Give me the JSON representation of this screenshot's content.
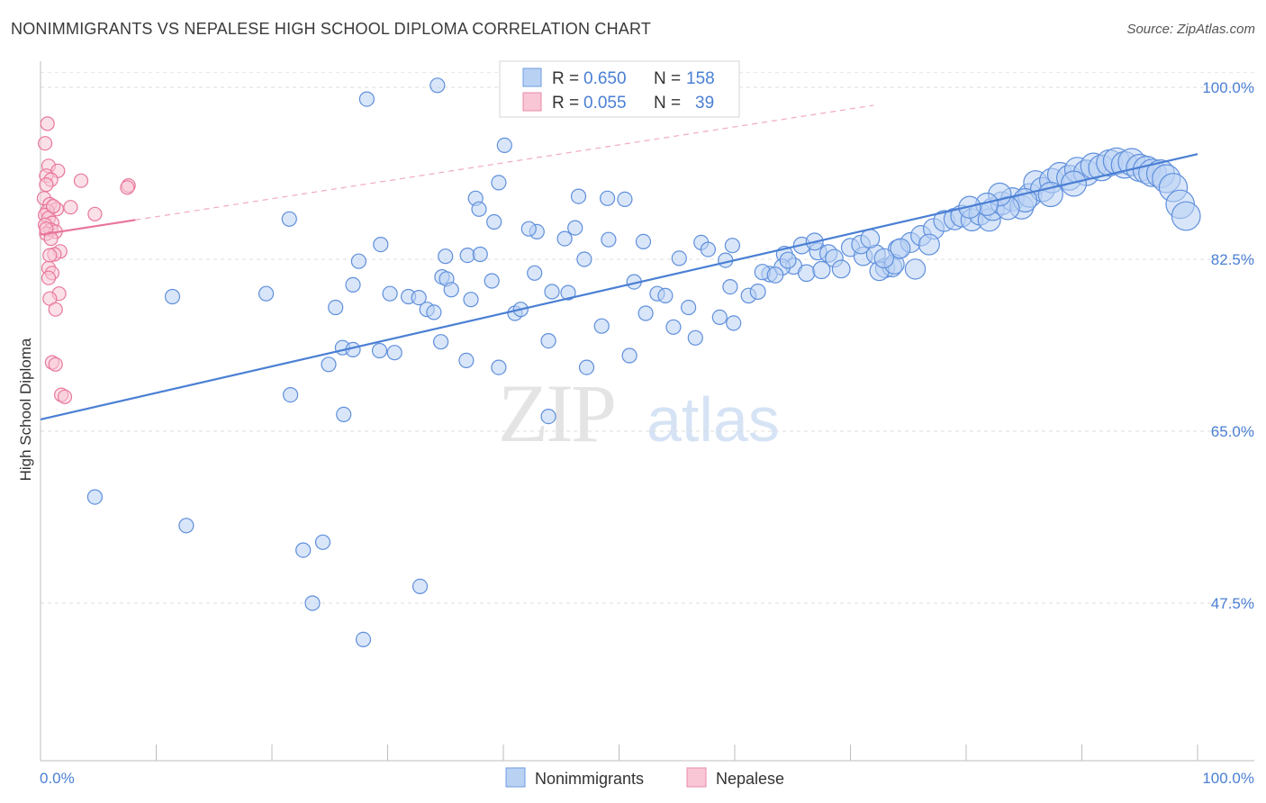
{
  "title": "NONIMMIGRANTS VS NEPALESE HIGH SCHOOL DIPLOMA CORRELATION CHART",
  "source": "Source: ZipAtlas.com",
  "chart_data": {
    "type": "scatter",
    "ylabel": "High School Diploma",
    "x_tick_labels": [
      "0.0%",
      "100.0%"
    ],
    "y_tick_labels": [
      "100.0%",
      "82.5%",
      "65.0%",
      "47.5%"
    ],
    "y_ticks": [
      100.0,
      82.5,
      65.0,
      47.5
    ],
    "xlim": [
      0,
      100
    ],
    "ylim": [
      34,
      102
    ],
    "grid": true,
    "legend_position": "top-center",
    "watermark": "ZIPatlas",
    "colors": {
      "nonimmigrants": "#4a7fd4",
      "nepalese": "#e8769a"
    },
    "stats": [
      {
        "r_label": "R = ",
        "r": "0.650",
        "n_label": "N = ",
        "n": "158"
      },
      {
        "r_label": "R = ",
        "r": "0.055",
        "n_label": "N = ",
        "n": "39"
      }
    ],
    "series": [
      {
        "name": "Nonimmigrants",
        "trend": {
          "x": [
            0,
            100
          ],
          "y": [
            66.2,
            93.2
          ]
        },
        "points": [
          [
            34.3,
            100.2
          ],
          [
            28.2,
            98.8
          ],
          [
            40.1,
            94.1
          ],
          [
            39.6,
            90.3
          ],
          [
            37.6,
            88.7
          ],
          [
            37.9,
            87.6
          ],
          [
            46.5,
            88.9
          ],
          [
            49.0,
            88.7
          ],
          [
            50.5,
            88.6
          ],
          [
            21.5,
            86.6
          ],
          [
            39.2,
            86.3
          ],
          [
            42.9,
            85.3
          ],
          [
            42.2,
            85.6
          ],
          [
            45.3,
            84.6
          ],
          [
            46.2,
            85.7
          ],
          [
            49.1,
            84.5
          ],
          [
            52.1,
            84.3
          ],
          [
            57.1,
            84.2
          ],
          [
            59.8,
            83.9
          ],
          [
            29.4,
            84.0
          ],
          [
            35.0,
            82.8
          ],
          [
            36.9,
            82.9
          ],
          [
            38.0,
            83.0
          ],
          [
            47.0,
            82.5
          ],
          [
            27.5,
            82.3
          ],
          [
            42.7,
            81.1
          ],
          [
            55.2,
            82.6
          ],
          [
            57.7,
            83.5
          ],
          [
            59.2,
            82.4
          ],
          [
            34.7,
            80.7
          ],
          [
            35.1,
            80.5
          ],
          [
            39.0,
            80.3
          ],
          [
            35.5,
            79.4
          ],
          [
            45.6,
            79.1
          ],
          [
            51.3,
            80.2
          ],
          [
            37.2,
            78.4
          ],
          [
            44.2,
            79.2
          ],
          [
            53.3,
            79.0
          ],
          [
            54.0,
            78.8
          ],
          [
            61.2,
            78.8
          ],
          [
            59.6,
            79.7
          ],
          [
            62.0,
            79.2
          ],
          [
            63.0,
            81.0
          ],
          [
            27.0,
            79.9
          ],
          [
            30.2,
            79.0
          ],
          [
            31.8,
            78.7
          ],
          [
            32.7,
            78.6
          ],
          [
            11.4,
            78.7
          ],
          [
            19.5,
            79.0
          ],
          [
            25.5,
            77.6
          ],
          [
            33.4,
            77.4
          ],
          [
            34.0,
            77.1
          ],
          [
            41.0,
            77.0
          ],
          [
            41.5,
            77.4
          ],
          [
            52.3,
            77.0
          ],
          [
            56.0,
            77.6
          ],
          [
            58.7,
            76.6
          ],
          [
            59.9,
            76.0
          ],
          [
            54.7,
            75.6
          ],
          [
            56.6,
            74.5
          ],
          [
            43.9,
            74.2
          ],
          [
            48.5,
            75.7
          ],
          [
            34.6,
            74.1
          ],
          [
            26.1,
            73.5
          ],
          [
            27.0,
            73.3
          ],
          [
            29.3,
            73.2
          ],
          [
            30.6,
            73.0
          ],
          [
            36.8,
            72.2
          ],
          [
            50.9,
            72.7
          ],
          [
            24.9,
            71.8
          ],
          [
            39.6,
            71.5
          ],
          [
            47.2,
            71.5
          ],
          [
            21.6,
            68.7
          ],
          [
            26.2,
            66.7
          ],
          [
            43.9,
            66.5
          ],
          [
            4.7,
            58.3
          ],
          [
            12.6,
            55.4
          ],
          [
            22.7,
            52.9
          ],
          [
            24.4,
            53.7
          ],
          [
            32.8,
            49.2
          ],
          [
            23.5,
            47.5
          ],
          [
            27.9,
            43.8
          ],
          [
            64.3,
            83.0
          ],
          [
            65.1,
            81.8
          ],
          [
            66.2,
            81.1
          ],
          [
            67.2,
            83.3
          ],
          [
            68.1,
            83.1
          ],
          [
            68.6,
            82.6
          ],
          [
            70.0,
            83.7
          ],
          [
            71.1,
            82.8
          ],
          [
            72.2,
            83.0
          ],
          [
            73.0,
            81.6
          ],
          [
            73.6,
            81.7
          ],
          [
            74.1,
            83.5
          ],
          [
            75.6,
            81.5
          ],
          [
            70.9,
            84.0
          ],
          [
            71.7,
            84.6
          ],
          [
            64.1,
            81.7
          ],
          [
            62.4,
            81.2
          ],
          [
            63.5,
            80.9
          ],
          [
            64.6,
            82.4
          ],
          [
            65.8,
            83.9
          ],
          [
            66.9,
            84.3
          ],
          [
            72.5,
            81.3
          ],
          [
            73.8,
            82.0
          ],
          [
            75.2,
            84.2
          ],
          [
            76.1,
            84.9
          ],
          [
            77.2,
            85.6
          ],
          [
            78.1,
            86.4
          ],
          [
            79.0,
            86.6
          ],
          [
            79.6,
            86.9
          ],
          [
            80.5,
            86.5
          ],
          [
            81.2,
            87.1
          ],
          [
            82.0,
            86.5
          ],
          [
            82.3,
            87.6
          ],
          [
            83.1,
            88.2
          ],
          [
            84.0,
            88.6
          ],
          [
            84.8,
            87.8
          ],
          [
            85.5,
            89.0
          ],
          [
            86.0,
            90.3
          ],
          [
            86.6,
            89.6
          ],
          [
            87.4,
            90.5
          ],
          [
            88.1,
            91.1
          ],
          [
            88.9,
            90.8
          ],
          [
            89.6,
            91.6
          ],
          [
            90.4,
            91.3
          ],
          [
            91.0,
            92.0
          ],
          [
            91.7,
            91.8
          ],
          [
            92.4,
            92.3
          ],
          [
            93.0,
            92.5
          ],
          [
            93.7,
            92.1
          ],
          [
            94.3,
            92.4
          ],
          [
            95.0,
            91.8
          ],
          [
            95.6,
            91.6
          ],
          [
            96.1,
            91.3
          ],
          [
            96.8,
            91.2
          ],
          [
            97.3,
            90.7
          ],
          [
            97.9,
            89.8
          ],
          [
            98.5,
            88.1
          ],
          [
            99.0,
            86.9
          ],
          [
            89.3,
            90.2
          ],
          [
            87.3,
            89.1
          ],
          [
            85.1,
            88.5
          ],
          [
            83.6,
            87.7
          ],
          [
            82.9,
            89.1
          ],
          [
            81.8,
            88.1
          ],
          [
            80.3,
            87.8
          ],
          [
            76.8,
            84.0
          ],
          [
            74.3,
            83.6
          ],
          [
            72.9,
            82.6
          ],
          [
            69.2,
            81.5
          ],
          [
            67.5,
            81.4
          ]
        ]
      },
      {
        "name": "Nepalese",
        "trend": {
          "x": [
            0,
            8.2
          ],
          "y": [
            85.0,
            86.5
          ]
        },
        "points": [
          [
            0.6,
            96.3
          ],
          [
            0.4,
            94.3
          ],
          [
            0.7,
            92.0
          ],
          [
            1.5,
            91.5
          ],
          [
            0.5,
            91.0
          ],
          [
            0.9,
            90.6
          ],
          [
            0.5,
            90.1
          ],
          [
            3.5,
            90.5
          ],
          [
            7.6,
            90.0
          ],
          [
            7.5,
            89.8
          ],
          [
            0.3,
            88.7
          ],
          [
            0.8,
            88.1
          ],
          [
            1.4,
            87.6
          ],
          [
            2.6,
            87.8
          ],
          [
            0.6,
            87.4
          ],
          [
            0.4,
            87.0
          ],
          [
            4.7,
            87.1
          ],
          [
            0.7,
            86.7
          ],
          [
            1.0,
            86.2
          ],
          [
            0.4,
            86.0
          ],
          [
            0.9,
            85.5
          ],
          [
            1.3,
            85.3
          ],
          [
            0.5,
            85.1
          ],
          [
            1.7,
            83.3
          ],
          [
            1.2,
            83.0
          ],
          [
            0.8,
            82.9
          ],
          [
            0.7,
            81.6
          ],
          [
            1.0,
            81.1
          ],
          [
            0.7,
            80.6
          ],
          [
            1.6,
            79.0
          ],
          [
            0.8,
            78.5
          ],
          [
            1.3,
            77.4
          ],
          [
            1.0,
            72.0
          ],
          [
            1.3,
            71.8
          ],
          [
            1.8,
            68.7
          ],
          [
            2.1,
            68.5
          ],
          [
            0.5,
            85.6
          ],
          [
            1.1,
            87.9
          ],
          [
            0.9,
            84.6
          ]
        ]
      }
    ]
  }
}
